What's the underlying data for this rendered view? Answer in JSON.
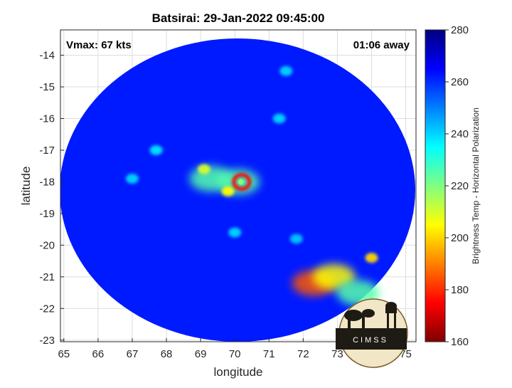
{
  "chart_data": {
    "type": "heatmap",
    "title": "Batsirai: 29-Jan-2022 09:45:00",
    "xlabel": "longitude",
    "ylabel": "latitude",
    "xlim": [
      64.9,
      75.3
    ],
    "ylim": [
      -23.05,
      -13.2
    ],
    "xticks": [
      65,
      66,
      67,
      68,
      69,
      70,
      71,
      72,
      73,
      74,
      75
    ],
    "yticks": [
      -14,
      -15,
      -16,
      -17,
      -18,
      -19,
      -20,
      -21,
      -22,
      -23
    ],
    "grid": true,
    "annotations": {
      "vmax": "Vmax: 67 kts",
      "away": "01:06 away"
    },
    "colorbar": {
      "label": "Brightness Temp - Horizontal Polarization",
      "min": 160,
      "max": 280,
      "ticks": [
        280,
        260,
        240,
        220,
        200,
        180,
        160
      ],
      "colormap": "jet",
      "colors": [
        "#7f0000",
        "#ff0000",
        "#ff8000",
        "#ffff00",
        "#80ff80",
        "#00ffff",
        "#0080ff",
        "#0000ff",
        "#00007f"
      ]
    },
    "swath": {
      "center": [
        70.2,
        -18.6
      ],
      "base_temp": 262
    },
    "features": [
      {
        "name": "eye-wall",
        "lon": 70.2,
        "lat": -18.0,
        "temp": 175
      },
      {
        "name": "inner-core",
        "lon": 70.1,
        "lat": -18.0,
        "temp": 225
      },
      {
        "name": "spiral-band-west",
        "lon": 69.3,
        "lat": -17.9,
        "temp": 225
      },
      {
        "name": "convection-west",
        "lon": 69.1,
        "lat": -17.6,
        "temp": 210
      },
      {
        "name": "cell-southwest",
        "lon": 69.8,
        "lat": -18.3,
        "temp": 205
      },
      {
        "name": "cell-far-west",
        "lon": 67.7,
        "lat": -17.0,
        "temp": 238
      },
      {
        "name": "cell-west-edge",
        "lon": 67.0,
        "lat": -17.9,
        "temp": 240
      },
      {
        "name": "cell-north",
        "lon": 71.3,
        "lat": -16.0,
        "temp": 240
      },
      {
        "name": "cell-south",
        "lon": 70.0,
        "lat": -19.6,
        "temp": 240
      },
      {
        "name": "cell-east",
        "lon": 71.8,
        "lat": -19.8,
        "temp": 242
      },
      {
        "name": "band-southeast-1",
        "lon": 72.3,
        "lat": -21.2,
        "temp": 185
      },
      {
        "name": "band-southeast-2",
        "lon": 72.9,
        "lat": -21.0,
        "temp": 205
      },
      {
        "name": "band-southeast-3",
        "lon": 73.6,
        "lat": -21.5,
        "temp": 225
      },
      {
        "name": "cell-southeast",
        "lon": 74.0,
        "lat": -20.4,
        "temp": 200
      },
      {
        "name": "cell-northeast",
        "lon": 71.5,
        "lat": -14.5,
        "temp": 240
      }
    ]
  },
  "logo": {
    "text": "CIMSS"
  }
}
